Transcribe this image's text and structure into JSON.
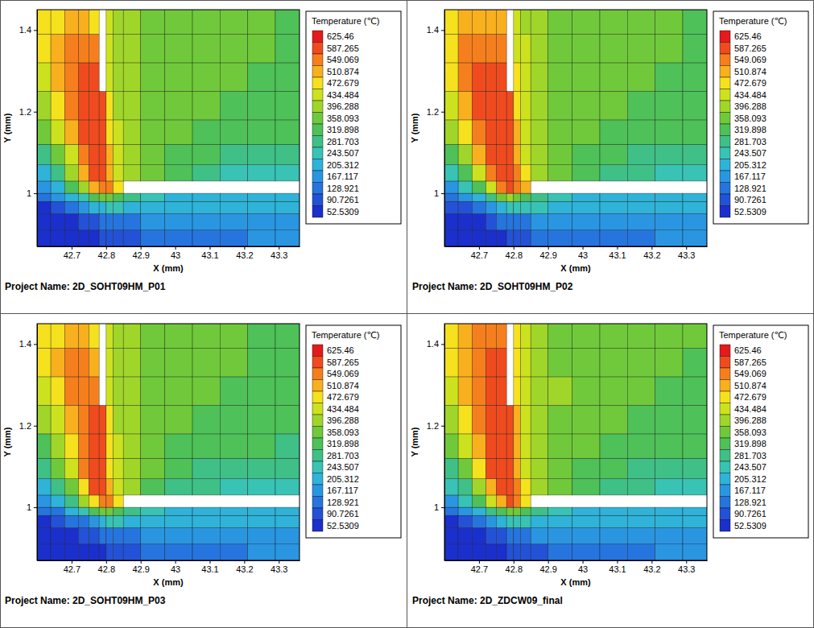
{
  "chart_data": [
    {
      "type": "heatmap",
      "title": "Project Name: 2D_SOHT09HM_P01",
      "x_label": "X (mm)",
      "y_label": "Y (mm)",
      "xlim": [
        42.6,
        43.36
      ],
      "ylim": [
        0.87,
        1.45
      ],
      "xticks": [
        42.7,
        42.8,
        42.9,
        43,
        43.1,
        43.2,
        43.3
      ],
      "yticks": [
        1,
        1.2,
        1.4
      ],
      "x_edges": [
        42.6,
        42.64,
        42.68,
        42.72,
        42.75,
        42.78,
        42.8,
        42.82,
        42.85,
        42.9,
        42.97,
        43.05,
        43.13,
        43.21,
        43.29,
        43.36
      ],
      "y_edges": [
        0.87,
        0.91,
        0.95,
        0.98,
        1.0,
        1.03,
        1.07,
        1.12,
        1.18,
        1.25,
        1.32,
        1.39,
        1.45
      ],
      "cells": [
        [
          53,
          53,
          60,
          70,
          85,
          95,
          100,
          110,
          125,
          140,
          150,
          160,
          165,
          170,
          170
        ],
        [
          60,
          70,
          85,
          100,
          120,
          135,
          145,
          155,
          165,
          175,
          185,
          190,
          195,
          195,
          195
        ],
        [
          90,
          110,
          140,
          170,
          210,
          240,
          250,
          250,
          240,
          225,
          215,
          210,
          210,
          210,
          215
        ],
        [
          140,
          170,
          220,
          280,
          340,
          380,
          370,
          330,
          290,
          255,
          235,
          225,
          220,
          220,
          225
        ],
        [
          190,
          240,
          320,
          420,
          520,
          570,
          560,
          500,
          null,
          null,
          null,
          null,
          null,
          null,
          null
        ],
        [
          240,
          300,
          400,
          520,
          600,
          620,
          540,
          470,
          420,
          360,
          320,
          300,
          280,
          270,
          260
        ],
        [
          300,
          380,
          470,
          580,
          620,
          625,
          520,
          450,
          410,
          370,
          340,
          320,
          310,
          300,
          290
        ],
        [
          370,
          440,
          520,
          610,
          625,
          620,
          500,
          440,
          410,
          380,
          360,
          345,
          335,
          325,
          320
        ],
        [
          430,
          490,
          560,
          615,
          620,
          600,
          480,
          430,
          410,
          385,
          370,
          360,
          350,
          340,
          335
        ],
        [
          470,
          520,
          570,
          600,
          590,
          null,
          470,
          430,
          410,
          390,
          380,
          370,
          360,
          350,
          345
        ],
        [
          490,
          530,
          560,
          570,
          550,
          null,
          460,
          430,
          405,
          390,
          380,
          370,
          365,
          360,
          355
        ],
        [
          480,
          510,
          530,
          530,
          510,
          null,
          450,
          420,
          400,
          385,
          375,
          370,
          365,
          360,
          355
        ]
      ],
      "colorbar": {
        "title": "Temperature (℃)",
        "ticks": [
          625.46,
          587.265,
          549.069,
          510.874,
          472.679,
          434.484,
          396.288,
          358.093,
          319.898,
          281.703,
          243.507,
          205.312,
          167.117,
          128.921,
          90.7261,
          52.5309
        ],
        "colors": [
          "#e41a1c",
          "#ef4b1f",
          "#f67f1d",
          "#f9b01e",
          "#f5e11d",
          "#cce21f",
          "#a0d629",
          "#70c93a",
          "#4ec158",
          "#3fc087",
          "#38c3b5",
          "#2fb3d8",
          "#2a96e2",
          "#2675de",
          "#2352d6",
          "#1b2fcc"
        ]
      }
    },
    {
      "type": "heatmap",
      "title": "Project Name: 2D_SOHT09HM_P02",
      "x_label": "X (mm)",
      "y_label": "Y (mm)",
      "xlim": [
        42.6,
        43.36
      ],
      "ylim": [
        0.87,
        1.45
      ],
      "xticks": [
        42.7,
        42.8,
        42.9,
        43,
        43.1,
        43.2,
        43.3
      ],
      "yticks": [
        1,
        1.2,
        1.4
      ],
      "x_edges": [
        42.6,
        42.64,
        42.68,
        42.72,
        42.75,
        42.78,
        42.8,
        42.82,
        42.85,
        42.9,
        42.97,
        43.05,
        43.13,
        43.21,
        43.29,
        43.36
      ],
      "y_edges": [
        0.87,
        0.91,
        0.95,
        0.98,
        1.0,
        1.03,
        1.07,
        1.12,
        1.18,
        1.25,
        1.32,
        1.39,
        1.45
      ],
      "cells": [
        [
          53,
          53,
          60,
          70,
          85,
          95,
          105,
          115,
          130,
          145,
          155,
          160,
          165,
          170,
          170
        ],
        [
          60,
          72,
          90,
          110,
          130,
          145,
          155,
          160,
          170,
          180,
          185,
          190,
          195,
          195,
          195
        ],
        [
          95,
          120,
          150,
          185,
          225,
          250,
          260,
          255,
          245,
          230,
          220,
          215,
          212,
          212,
          215
        ],
        [
          150,
          185,
          240,
          300,
          360,
          400,
          390,
          340,
          300,
          262,
          240,
          228,
          222,
          222,
          225
        ],
        [
          200,
          260,
          350,
          460,
          560,
          600,
          580,
          520,
          null,
          null,
          null,
          null,
          null,
          null,
          null
        ],
        [
          260,
          330,
          440,
          570,
          615,
          625,
          560,
          480,
          430,
          370,
          330,
          305,
          285,
          272,
          262
        ],
        [
          330,
          420,
          520,
          610,
          625,
          625,
          540,
          460,
          420,
          378,
          345,
          325,
          312,
          302,
          292
        ],
        [
          400,
          480,
          570,
          620,
          625,
          625,
          520,
          450,
          415,
          385,
          362,
          348,
          338,
          328,
          322
        ],
        [
          460,
          530,
          590,
          620,
          625,
          615,
          500,
          440,
          415,
          390,
          372,
          362,
          352,
          342,
          337
        ],
        [
          500,
          550,
          590,
          610,
          605,
          null,
          485,
          440,
          415,
          392,
          382,
          372,
          362,
          352,
          347
        ],
        [
          510,
          550,
          575,
          585,
          570,
          null,
          470,
          435,
          410,
          392,
          382,
          372,
          366,
          360,
          356
        ],
        [
          500,
          530,
          545,
          545,
          525,
          null,
          460,
          425,
          405,
          388,
          377,
          371,
          366,
          361,
          356
        ]
      ],
      "colorbar": {
        "title": "Temperature (℃)",
        "ticks": [
          625.46,
          587.265,
          549.069,
          510.874,
          472.679,
          434.484,
          396.288,
          358.093,
          319.898,
          281.703,
          243.507,
          205.312,
          167.117,
          128.921,
          90.7261,
          52.5309
        ],
        "colors": [
          "#e41a1c",
          "#ef4b1f",
          "#f67f1d",
          "#f9b01e",
          "#f5e11d",
          "#cce21f",
          "#a0d629",
          "#70c93a",
          "#4ec158",
          "#3fc087",
          "#38c3b5",
          "#2fb3d8",
          "#2a96e2",
          "#2675de",
          "#2352d6",
          "#1b2fcc"
        ]
      }
    },
    {
      "type": "heatmap",
      "title": "Project Name: 2D_SOHT09HM_P03",
      "x_label": "X (mm)",
      "y_label": "Y (mm)",
      "xlim": [
        42.6,
        43.36
      ],
      "ylim": [
        0.87,
        1.45
      ],
      "xticks": [
        42.7,
        42.8,
        42.9,
        43,
        43.1,
        43.2,
        43.3
      ],
      "yticks": [
        1,
        1.2,
        1.4
      ],
      "x_edges": [
        42.6,
        42.64,
        42.68,
        42.72,
        42.75,
        42.78,
        42.8,
        42.82,
        42.85,
        42.9,
        42.97,
        43.05,
        43.13,
        43.21,
        43.29,
        43.36
      ],
      "y_edges": [
        0.87,
        0.91,
        0.95,
        0.98,
        1.0,
        1.03,
        1.07,
        1.12,
        1.18,
        1.25,
        1.32,
        1.39,
        1.45
      ],
      "cells": [
        [
          53,
          53,
          58,
          65,
          78,
          90,
          100,
          108,
          120,
          135,
          148,
          158,
          163,
          168,
          168
        ],
        [
          58,
          68,
          82,
          98,
          118,
          132,
          142,
          152,
          162,
          172,
          182,
          188,
          193,
          193,
          193
        ],
        [
          88,
          105,
          135,
          165,
          205,
          235,
          245,
          245,
          235,
          222,
          212,
          208,
          208,
          208,
          212
        ],
        [
          135,
          165,
          210,
          270,
          330,
          370,
          360,
          320,
          285,
          250,
          232,
          222,
          218,
          218,
          222
        ],
        [
          185,
          230,
          300,
          400,
          505,
          565,
          550,
          490,
          null,
          null,
          null,
          null,
          null,
          null,
          null
        ],
        [
          230,
          285,
          380,
          495,
          590,
          615,
          530,
          460,
          415,
          355,
          318,
          298,
          278,
          268,
          258
        ],
        [
          285,
          360,
          445,
          550,
          610,
          620,
          510,
          445,
          405,
          365,
          338,
          318,
          308,
          298,
          288
        ],
        [
          350,
          420,
          490,
          575,
          615,
          615,
          495,
          435,
          405,
          378,
          358,
          343,
          333,
          323,
          318
        ],
        [
          410,
          470,
          530,
          585,
          605,
          595,
          475,
          428,
          405,
          382,
          368,
          358,
          348,
          338,
          333
        ],
        [
          450,
          500,
          550,
          580,
          575,
          null,
          465,
          428,
          405,
          388,
          378,
          368,
          358,
          348,
          343
        ],
        [
          480,
          520,
          550,
          560,
          545,
          null,
          455,
          425,
          402,
          388,
          378,
          368,
          363,
          358,
          353
        ],
        [
          480,
          505,
          525,
          528,
          510,
          null,
          445,
          418,
          398,
          383,
          373,
          368,
          363,
          358,
          353
        ]
      ],
      "colorbar": {
        "title": "Temperature (℃)",
        "ticks": [
          625.46,
          587.265,
          549.069,
          510.874,
          472.679,
          434.484,
          396.288,
          358.093,
          319.898,
          281.703,
          243.507,
          205.312,
          167.117,
          128.921,
          90.7261,
          52.5309
        ],
        "colors": [
          "#e41a1c",
          "#ef4b1f",
          "#f67f1d",
          "#f9b01e",
          "#f5e11d",
          "#cce21f",
          "#a0d629",
          "#70c93a",
          "#4ec158",
          "#3fc087",
          "#38c3b5",
          "#2fb3d8",
          "#2a96e2",
          "#2675de",
          "#2352d6",
          "#1b2fcc"
        ]
      }
    },
    {
      "type": "heatmap",
      "title": "Project Name: 2D_ZDCW09_final",
      "x_label": "X (mm)",
      "y_label": "Y (mm)",
      "xlim": [
        42.6,
        43.36
      ],
      "ylim": [
        0.87,
        1.45
      ],
      "xticks": [
        42.7,
        42.8,
        42.9,
        43,
        43.1,
        43.2,
        43.3
      ],
      "yticks": [
        1,
        1.2,
        1.4
      ],
      "x_edges": [
        42.6,
        42.64,
        42.68,
        42.72,
        42.75,
        42.78,
        42.8,
        42.82,
        42.85,
        42.9,
        42.97,
        43.05,
        43.13,
        43.21,
        43.29,
        43.36
      ],
      "y_edges": [
        0.87,
        0.91,
        0.95,
        0.98,
        1.0,
        1.03,
        1.07,
        1.12,
        1.18,
        1.25,
        1.32,
        1.39,
        1.45
      ],
      "cells": [
        [
          53,
          53,
          58,
          68,
          82,
          92,
          102,
          112,
          125,
          140,
          150,
          158,
          163,
          168,
          168
        ],
        [
          58,
          70,
          86,
          104,
          124,
          140,
          150,
          158,
          168,
          178,
          185,
          190,
          194,
          194,
          194
        ],
        [
          90,
          112,
          145,
          178,
          218,
          246,
          256,
          252,
          242,
          228,
          218,
          212,
          210,
          210,
          213
        ],
        [
          142,
          175,
          228,
          290,
          350,
          392,
          380,
          335,
          295,
          258,
          236,
          226,
          220,
          220,
          224
        ],
        [
          195,
          248,
          335,
          440,
          545,
          590,
          570,
          510,
          null,
          null,
          null,
          null,
          null,
          null,
          null
        ],
        [
          248,
          315,
          420,
          545,
          610,
          625,
          555,
          480,
          430,
          368,
          328,
          303,
          283,
          270,
          260
        ],
        [
          310,
          395,
          490,
          595,
          625,
          625,
          540,
          465,
          420,
          378,
          345,
          325,
          312,
          302,
          292
        ],
        [
          375,
          450,
          535,
          610,
          625,
          625,
          530,
          460,
          420,
          388,
          365,
          350,
          340,
          330,
          324
        ],
        [
          430,
          495,
          560,
          610,
          625,
          620,
          515,
          455,
          420,
          393,
          376,
          365,
          355,
          345,
          340
        ],
        [
          470,
          525,
          575,
          605,
          610,
          null,
          505,
          450,
          420,
          397,
          386,
          376,
          366,
          356,
          350
        ],
        [
          490,
          535,
          570,
          590,
          595,
          null,
          495,
          445,
          415,
          396,
          386,
          376,
          370,
          364,
          358
        ],
        [
          485,
          520,
          550,
          565,
          575,
          null,
          485,
          440,
          412,
          394,
          383,
          376,
          370,
          365,
          360
        ]
      ],
      "colorbar": {
        "title": "Temperature (℃)",
        "ticks": [
          625.46,
          587.265,
          549.069,
          510.874,
          472.679,
          434.484,
          396.288,
          358.093,
          319.898,
          281.703,
          243.507,
          205.312,
          167.117,
          128.921,
          90.7261,
          52.5309
        ],
        "colors": [
          "#e41a1c",
          "#ef4b1f",
          "#f67f1d",
          "#f9b01e",
          "#f5e11d",
          "#cce21f",
          "#a0d629",
          "#70c93a",
          "#4ec158",
          "#3fc087",
          "#38c3b5",
          "#2fb3d8",
          "#2a96e2",
          "#2675de",
          "#2352d6",
          "#1b2fcc"
        ]
      }
    }
  ]
}
